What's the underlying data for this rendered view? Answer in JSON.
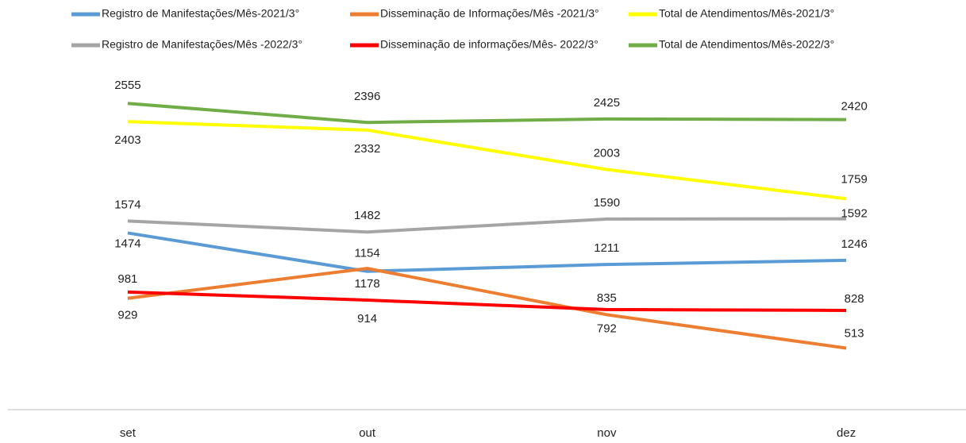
{
  "chart_data": {
    "type": "line",
    "categories": [
      "set",
      "out",
      "nov",
      "dez"
    ],
    "ylim": [
      0,
      3000
    ],
    "series": [
      {
        "name": "Registro de Manifestações/Mês-2021/3°",
        "color": "#5b9bd5",
        "values": [
          1474,
          1154,
          1211,
          1246
        ]
      },
      {
        "name": "Disseminação de Informações/Mês -2021/3°",
        "color": "#ed7d31",
        "values": [
          929,
          1178,
          792,
          513
        ]
      },
      {
        "name": "Total de Atendimentos/Mês-2021/3°",
        "color": "#ffff00",
        "values": [
          2403,
          2332,
          2003,
          1759
        ]
      },
      {
        "name": "Registro de Manifestações/Mês -2022/3°",
        "color": "#a5a5a5",
        "values": [
          1574,
          1482,
          1590,
          1592
        ]
      },
      {
        "name": "Disseminação de informações/Mês- 2022/3°",
        "color": "#ff0000",
        "values": [
          981,
          914,
          835,
          828
        ]
      },
      {
        "name": "Total de Atendimentos/Mês-2022/3°",
        "color": "#70ad47",
        "values": [
          2555,
          2396,
          2425,
          2420
        ]
      }
    ]
  }
}
